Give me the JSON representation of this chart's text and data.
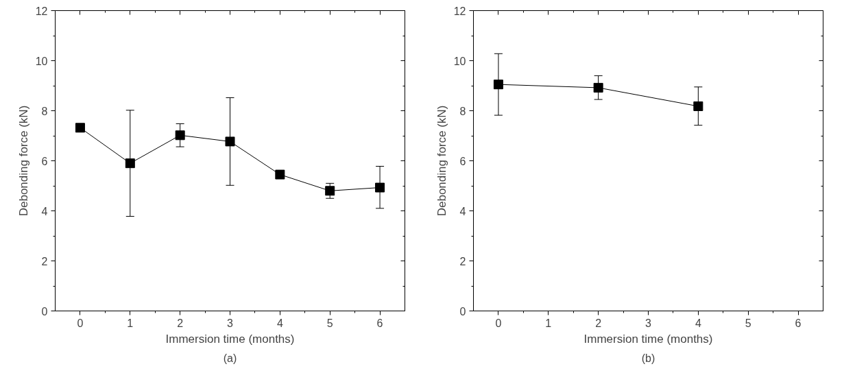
{
  "chart_data": [
    {
      "type": "line",
      "title": "(a)",
      "xlabel": "Immersion time (months)",
      "ylabel": "Debonding force (kN)",
      "x": [
        0,
        1,
        2,
        3,
        4,
        5,
        6
      ],
      "series": [
        {
          "color": "#000000",
          "values": [
            7.32,
            5.9,
            7.02,
            6.77,
            5.45,
            4.8,
            4.93
          ],
          "errors": [
            0.15,
            [
              3.78,
              8.02
            ],
            [
              6.56,
              7.48
            ],
            [
              5.02,
              8.52
            ],
            0.1,
            [
              4.5,
              5.1
            ],
            [
              4.1,
              5.78
            ]
          ]
        }
      ],
      "xlim": [
        -0.5,
        6.5
      ],
      "ylim": [
        0,
        12
      ],
      "xticks": [
        0,
        1,
        2,
        3,
        4,
        5,
        6
      ],
      "yticks": [
        0,
        2,
        4,
        6,
        8,
        10,
        12
      ],
      "grid": false,
      "marker": "square",
      "line_style": "solid"
    },
    {
      "type": "line",
      "title": "(b)",
      "xlabel": "Immersion time (months)",
      "ylabel": "Debonding force (kN)",
      "x": [
        0,
        2,
        4
      ],
      "series": [
        {
          "color": "#000000",
          "values": [
            9.05,
            8.92,
            8.18
          ],
          "errors": [
            [
              7.82,
              10.28
            ],
            [
              8.45,
              9.4
            ],
            [
              7.42,
              8.95
            ]
          ]
        }
      ],
      "xlim": [
        -0.5,
        6.5
      ],
      "ylim": [
        0,
        12
      ],
      "xticks": [
        0,
        1,
        2,
        3,
        4,
        5,
        6
      ],
      "yticks": [
        0,
        2,
        4,
        6,
        8,
        10,
        12
      ],
      "grid": false,
      "marker": "square",
      "line_style": "solid"
    }
  ]
}
